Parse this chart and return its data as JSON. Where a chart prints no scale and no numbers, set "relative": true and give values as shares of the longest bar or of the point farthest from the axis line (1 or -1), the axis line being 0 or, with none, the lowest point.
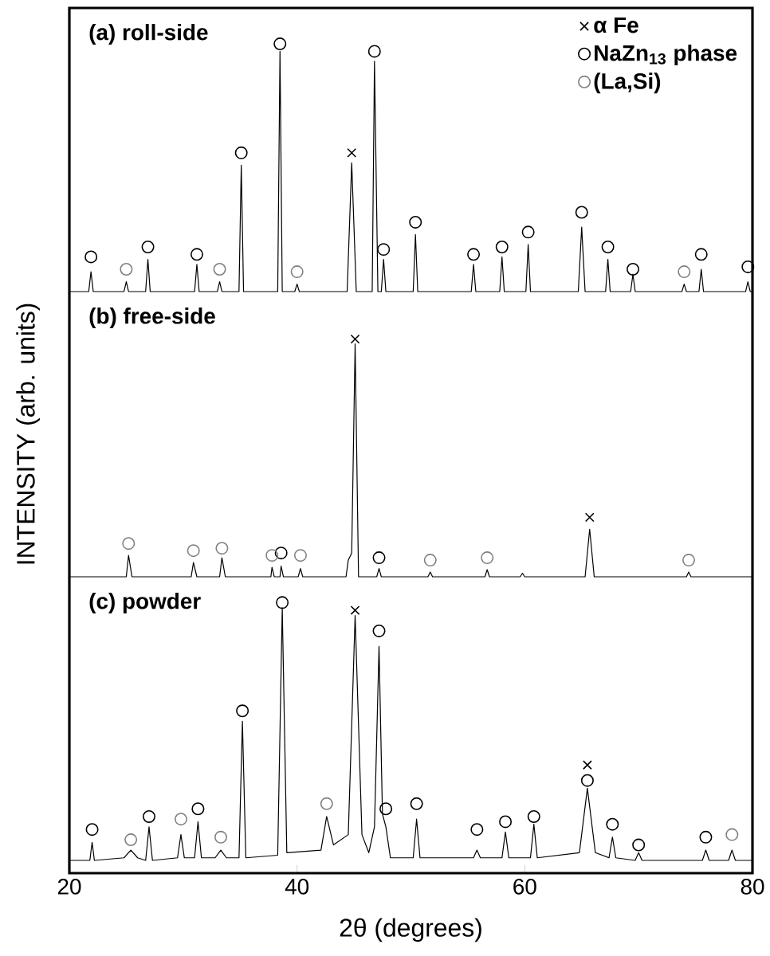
{
  "chart_data": [
    {
      "type": "line",
      "title": "(a) roll-side",
      "relative": true,
      "xlim": [
        20,
        80
      ],
      "tick_labels": false,
      "legend": "top right",
      "series": [
        {
          "color": "#000000",
          "x": [
            20,
            21.7,
            21.9,
            22.1,
            24.8,
            25.0,
            25.2,
            26.7,
            26.9,
            27.1,
            31.0,
            31.2,
            31.4,
            33.0,
            33.2,
            33.4,
            34.9,
            35.1,
            35.3,
            38.3,
            38.5,
            38.7,
            39.8,
            40.0,
            40.2,
            44.4,
            44.8,
            45.2,
            46.6,
            46.8,
            47.1,
            47.4,
            47.6,
            47.8,
            50.2,
            50.4,
            50.6,
            55.3,
            55.5,
            55.7,
            57.8,
            58.0,
            58.2,
            60.1,
            60.3,
            60.5,
            64.7,
            65.0,
            65.3,
            67.1,
            67.3,
            67.5,
            69.3,
            69.5,
            69.7,
            73.8,
            74.0,
            74.2,
            75.3,
            75.5,
            75.7,
            79.4,
            79.6,
            79.8,
            80
          ],
          "values": [
            0,
            0,
            0.08,
            0,
            0,
            0.04,
            0,
            0,
            0.13,
            0,
            0,
            0.11,
            0,
            0,
            0.04,
            0,
            0,
            0.51,
            0,
            0,
            0.97,
            0,
            0,
            0.03,
            0,
            0,
            0.52,
            0,
            0,
            0.93,
            0,
            0,
            0.13,
            0,
            0,
            0.23,
            0,
            0,
            0.11,
            0,
            0,
            0.14,
            0,
            0,
            0.19,
            0,
            0,
            0.26,
            0,
            0,
            0.13,
            0,
            0,
            0.07,
            0,
            0,
            0.03,
            0,
            0,
            0.09,
            0,
            0,
            0.04,
            0,
            0
          ]
        },
        {
          "type": "scatter",
          "name": "α Fe",
          "marker": "cross",
          "color": "#000000",
          "x": [
            44.8
          ],
          "values": [
            0.56
          ]
        },
        {
          "type": "scatter",
          "name": "NaZn$_{13}$ phase",
          "marker": "circle",
          "color": "#000000",
          "x": [
            21.9,
            26.9,
            31.2,
            35.1,
            38.5,
            46.8,
            47.6,
            50.4,
            55.5,
            58.0,
            60.3,
            65.0,
            67.3,
            69.5,
            75.5,
            79.6
          ],
          "values": [
            0.14,
            0.18,
            0.15,
            0.56,
            1.0,
            0.97,
            0.17,
            0.28,
            0.15,
            0.18,
            0.24,
            0.32,
            0.18,
            0.09,
            0.15,
            0.1
          ]
        },
        {
          "type": "scatter",
          "name": "(La,Si)",
          "marker": "circle",
          "color": "#808080",
          "x": [
            25.0,
            33.2,
            40.0,
            74.0
          ],
          "values": [
            0.09,
            0.09,
            0.08,
            0.08
          ]
        }
      ]
    },
    {
      "type": "line",
      "title": "(b) free-side",
      "ylabel": "INTENSITY (arb. units)",
      "relative": true,
      "xlim": [
        20,
        80
      ],
      "tick_labels": false,
      "series": [
        {
          "color": "#000000",
          "x": [
            20,
            25.0,
            25.2,
            25.5,
            30.7,
            30.9,
            31.2,
            33.2,
            33.4,
            33.7,
            37.7,
            37.8,
            38.0,
            38.5,
            38.6,
            38.8,
            40.1,
            40.3,
            40.5,
            44.3,
            44.5,
            44.8,
            45.1,
            45.4,
            47.0,
            47.2,
            47.4,
            51.5,
            51.7,
            51.9,
            56.5,
            56.7,
            56.9,
            59.6,
            59.8,
            60.0,
            65.3,
            65.7,
            66.1,
            74.2,
            74.4,
            74.6,
            80
          ],
          "values": [
            0,
            0,
            0.09,
            0,
            0,
            0.06,
            0,
            0,
            0.08,
            0,
            0,
            0.04,
            0,
            0,
            0.045,
            0,
            0,
            0.035,
            0,
            0,
            0.07,
            0.1,
            0.98,
            0,
            0,
            0.035,
            0,
            0,
            0.02,
            0,
            0,
            0.03,
            0,
            0,
            0.015,
            0,
            0,
            0.2,
            0,
            0,
            0.02,
            0,
            0
          ]
        },
        {
          "type": "scatter",
          "marker": "cross",
          "color": "#000000",
          "x": [
            45.1,
            65.7
          ],
          "values": [
            1.0,
            0.25
          ]
        },
        {
          "type": "scatter",
          "marker": "circle",
          "color": "#000000",
          "x": [
            38.6,
            47.2
          ],
          "values": [
            0.1,
            0.08
          ]
        },
        {
          "type": "scatter",
          "marker": "circle",
          "color": "#808080",
          "x": [
            25.2,
            30.9,
            33.4,
            37.8,
            40.3,
            51.7,
            56.7,
            74.4
          ],
          "values": [
            0.14,
            0.11,
            0.12,
            0.09,
            0.09,
            0.07,
            0.08,
            0.07
          ]
        }
      ]
    },
    {
      "type": "line",
      "title": "(c) powder",
      "xlabel": "2θ (degrees)",
      "relative": true,
      "xlim": [
        20,
        80
      ],
      "xticks": [
        20,
        40,
        60,
        80
      ],
      "tick_labels": "x",
      "series": [
        {
          "color": "#000000",
          "x": [
            20,
            21.8,
            22.0,
            22.2,
            24.8,
            25.4,
            26.0,
            26.7,
            27.0,
            27.3,
            29.5,
            29.8,
            30.1,
            31.0,
            31.3,
            31.6,
            32.8,
            33.3,
            33.8,
            34.9,
            35.2,
            35.5,
            38.3,
            38.7,
            39.1,
            42.1,
            42.6,
            43.2,
            44.5,
            45.1,
            45.7,
            46.3,
            46.8,
            47.2,
            47.5,
            47.8,
            48.2,
            50.2,
            50.5,
            50.8,
            55.5,
            55.8,
            56.1,
            58.0,
            58.3,
            58.6,
            60.5,
            60.8,
            61.1,
            64.8,
            65.5,
            66.2,
            67.4,
            67.7,
            68.0,
            69.7,
            70.0,
            70.3,
            75.6,
            75.9,
            76.2,
            77.9,
            78.2,
            78.5,
            80
          ],
          "values": [
            0,
            0,
            0.07,
            0,
            0.01,
            0.04,
            0.01,
            0,
            0.13,
            0,
            0.01,
            0.1,
            0.01,
            0.01,
            0.15,
            0.01,
            0.01,
            0.04,
            0.01,
            0.01,
            0.54,
            0.01,
            0.02,
            0.98,
            0.03,
            0.04,
            0.17,
            0.06,
            0.1,
            0.95,
            0.1,
            0.03,
            0.13,
            0.83,
            0.18,
            0.13,
            0.01,
            0.01,
            0.16,
            0.01,
            0.01,
            0.04,
            0.01,
            0.01,
            0.11,
            0.01,
            0.01,
            0.14,
            0.01,
            0.03,
            0.28,
            0.03,
            0.01,
            0.09,
            0.01,
            0,
            0.03,
            0,
            0,
            0.04,
            0,
            0,
            0.04,
            0,
            0
          ]
        },
        {
          "type": "scatter",
          "marker": "cross",
          "color": "#000000",
          "x": [
            45.1,
            65.5
          ],
          "values": [
            0.97,
            0.37
          ]
        },
        {
          "type": "scatter",
          "marker": "circle",
          "color": "#000000",
          "x": [
            22.0,
            27.0,
            31.3,
            35.2,
            38.7,
            47.2,
            47.8,
            50.5,
            55.8,
            58.3,
            60.8,
            65.5,
            67.7,
            70.0,
            75.9
          ],
          "values": [
            0.12,
            0.17,
            0.2,
            0.58,
            1.0,
            0.89,
            0.2,
            0.22,
            0.12,
            0.15,
            0.17,
            0.31,
            0.14,
            0.06,
            0.09
          ]
        },
        {
          "type": "scatter",
          "marker": "circle",
          "color": "#808080",
          "x": [
            25.4,
            29.8,
            33.3,
            42.6,
            78.2
          ],
          "values": [
            0.08,
            0.16,
            0.09,
            0.22,
            0.1
          ]
        }
      ]
    }
  ]
}
